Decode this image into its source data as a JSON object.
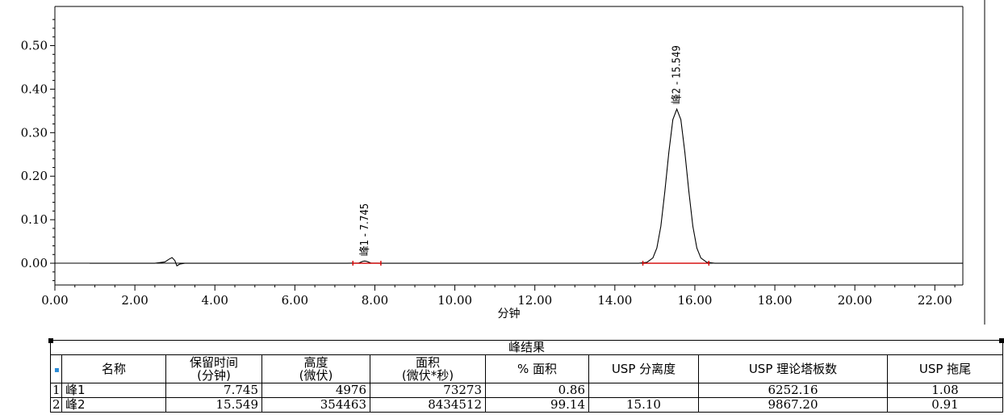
{
  "chart_data": {
    "type": "line",
    "xlabel": "分钟",
    "ylabel": "",
    "xlim": [
      0,
      22.7
    ],
    "ylim": [
      -0.05,
      0.59
    ],
    "x_ticks": [
      "0.00",
      "2.00",
      "4.00",
      "6.00",
      "8.00",
      "10.00",
      "12.00",
      "14.00",
      "16.00",
      "18.00",
      "20.00",
      "22.00"
    ],
    "y_ticks": [
      "0.00",
      "0.10",
      "0.20",
      "0.30",
      "0.40",
      "0.50"
    ],
    "series": [
      {
        "points": [
          [
            0.87,
            0.0
          ],
          [
            1.5,
            0.0
          ],
          [
            2.5,
            0.0
          ],
          [
            2.75,
            0.003
          ],
          [
            2.85,
            0.009
          ],
          [
            2.93,
            0.013
          ],
          [
            3.0,
            0.006
          ],
          [
            3.05,
            -0.006
          ],
          [
            3.12,
            -0.002
          ],
          [
            3.25,
            0.0
          ],
          [
            3.7,
            0.0
          ],
          [
            7.3,
            0.0
          ],
          [
            7.6,
            0.0005
          ],
          [
            7.7,
            0.0045
          ],
          [
            7.745,
            0.005
          ],
          [
            7.79,
            0.0045
          ],
          [
            7.9,
            0.0005
          ],
          [
            8.2,
            0.0
          ],
          [
            14.6,
            0.0
          ],
          [
            14.8,
            0.002
          ],
          [
            14.95,
            0.012
          ],
          [
            15.05,
            0.035
          ],
          [
            15.15,
            0.085
          ],
          [
            15.25,
            0.165
          ],
          [
            15.35,
            0.255
          ],
          [
            15.45,
            0.33
          ],
          [
            15.549,
            0.354
          ],
          [
            15.65,
            0.33
          ],
          [
            15.75,
            0.255
          ],
          [
            15.85,
            0.165
          ],
          [
            15.95,
            0.085
          ],
          [
            16.05,
            0.035
          ],
          [
            16.15,
            0.012
          ],
          [
            16.3,
            0.002
          ],
          [
            16.5,
            0.0
          ],
          [
            22.7,
            0.0
          ]
        ]
      }
    ],
    "baseline_y": 0.0,
    "peaks": [
      {
        "label": "峰1 - 7.745",
        "rt": 7.745,
        "height": 0.005,
        "start": 7.45,
        "end": 8.15
      },
      {
        "label": "峰2 - 15.549",
        "rt": 15.549,
        "height": 0.354,
        "start": 14.7,
        "end": 16.35
      }
    ]
  },
  "results": {
    "title": "峰结果",
    "headers": [
      "",
      "名称",
      "保留时间|(分钟)",
      "高度|(微伏)",
      "面积|(微伏*秒)",
      "% 面积",
      "USP 分离度",
      "USP 理论塔板数",
      "USP 拖尾"
    ],
    "rows": [
      {
        "index": "1",
        "name": "峰1",
        "rt": "7.745",
        "height": "4976",
        "area": "73273",
        "pct_area": "0.86",
        "resolution": "",
        "plates": "6252.16",
        "tailing": "1.08"
      },
      {
        "index": "2",
        "name": "峰2",
        "rt": "15.549",
        "height": "354463",
        "area": "8434512",
        "pct_area": "99.14",
        "resolution": "15.10",
        "plates": "9867.20",
        "tailing": "0.91"
      }
    ]
  }
}
